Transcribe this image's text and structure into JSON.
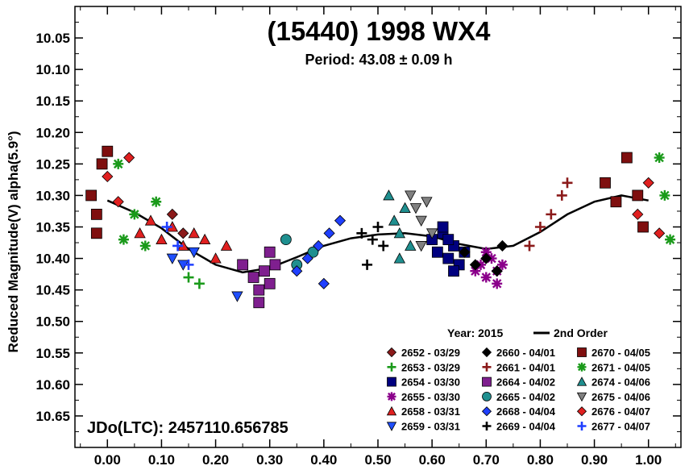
{
  "chart_data": {
    "type": "scatter",
    "title": "(15440) 1998 WX4",
    "subtitle": "Period: 43.08 ± 0.09 h",
    "ylabel": "Reduced Magnitude(V) alpha(5.9°)",
    "xlabel": "",
    "xlim": [
      -0.06,
      1.06
    ],
    "ylim": [
      10.0,
      10.7
    ],
    "y_inverted": true,
    "x_ticks": [
      "0.00",
      "0.10",
      "0.20",
      "0.30",
      "0.40",
      "0.50",
      "0.60",
      "0.70",
      "0.80",
      "0.90",
      "1.00"
    ],
    "y_ticks": [
      "10.05",
      "10.10",
      "10.15",
      "10.20",
      "10.25",
      "10.30",
      "10.35",
      "10.40",
      "10.45",
      "10.50",
      "10.55",
      "10.60",
      "10.65"
    ],
    "legend_year": "Year: 2015",
    "fit_label": "2nd Order",
    "jdo_label": "JDo(LTC): 2457110.656785",
    "fit_curve": {
      "x": [
        0.0,
        0.05,
        0.1,
        0.15,
        0.2,
        0.25,
        0.3,
        0.35,
        0.4,
        0.45,
        0.5,
        0.55,
        0.6,
        0.65,
        0.7,
        0.75,
        0.8,
        0.85,
        0.9,
        0.95,
        1.0
      ],
      "y": [
        10.308,
        10.327,
        10.352,
        10.385,
        10.41,
        10.422,
        10.415,
        10.398,
        10.38,
        10.368,
        10.362,
        10.36,
        10.365,
        10.377,
        10.385,
        10.38,
        10.358,
        10.33,
        10.31,
        10.3,
        10.308
      ]
    },
    "series": [
      {
        "name": "2652 - 03/29",
        "marker": "diamond",
        "color": "#8b1a1a",
        "x": [
          0.12,
          0.14
        ],
        "y": [
          10.33,
          10.36
        ]
      },
      {
        "name": "2653 - 03/29",
        "marker": "plus",
        "color": "#1a9a1a",
        "x": [
          0.15,
          0.17
        ],
        "y": [
          10.43,
          10.44
        ]
      },
      {
        "name": "2654 - 03/30",
        "marker": "square",
        "color": "#00007f",
        "x": [
          0.6,
          0.61,
          0.62,
          0.63,
          0.64,
          0.65,
          0.62,
          0.64,
          0.66,
          0.63
        ],
        "y": [
          10.37,
          10.39,
          10.36,
          10.4,
          10.38,
          10.41,
          10.35,
          10.42,
          10.39,
          10.37
        ]
      },
      {
        "name": "2655 - 03/30",
        "marker": "star",
        "color": "#8b008b",
        "x": [
          0.68,
          0.69,
          0.7,
          0.71,
          0.72,
          0.73,
          0.7,
          0.72
        ],
        "y": [
          10.42,
          10.41,
          10.43,
          10.4,
          10.42,
          10.41,
          10.39,
          10.44
        ]
      },
      {
        "name": "2658 - 03/31",
        "marker": "triangle-up",
        "color": "#e02020",
        "x": [
          0.06,
          0.08,
          0.1,
          0.12,
          0.14,
          0.16,
          0.18,
          0.2,
          0.22
        ],
        "y": [
          10.36,
          10.34,
          10.37,
          10.35,
          10.38,
          10.36,
          10.37,
          10.4,
          10.38
        ]
      },
      {
        "name": "2659 - 03/31",
        "marker": "triangle-down",
        "color": "#1f4fff",
        "x": [
          0.12,
          0.14,
          0.16,
          0.24
        ],
        "y": [
          10.4,
          10.41,
          10.39,
          10.46
        ]
      },
      {
        "name": "2660 - 04/01",
        "marker": "diamond",
        "color": "#000000",
        "x": [
          0.66,
          0.68,
          0.7,
          0.72,
          0.73
        ],
        "y": [
          10.39,
          10.41,
          10.4,
          10.42,
          10.38
        ]
      },
      {
        "name": "2661 - 04/01",
        "marker": "plus",
        "color": "#8b1a1a",
        "x": [
          0.78,
          0.8,
          0.82,
          0.84,
          0.85
        ],
        "y": [
          10.38,
          10.35,
          10.33,
          10.3,
          10.28
        ]
      },
      {
        "name": "2664 - 04/02",
        "marker": "square",
        "color": "#7f1f8f",
        "x": [
          0.25,
          0.27,
          0.28,
          0.29,
          0.3,
          0.31,
          0.28,
          0.3
        ],
        "y": [
          10.41,
          10.43,
          10.45,
          10.42,
          10.44,
          10.41,
          10.47,
          10.39
        ]
      },
      {
        "name": "2665 - 04/02",
        "marker": "circle",
        "color": "#1f8f8f",
        "x": [
          0.33,
          0.35,
          0.38
        ],
        "y": [
          10.37,
          10.41,
          10.39
        ]
      },
      {
        "name": "2668 - 04/04",
        "marker": "diamond",
        "color": "#1f3fff",
        "x": [
          0.35,
          0.37,
          0.39,
          0.41,
          0.43,
          0.4
        ],
        "y": [
          10.42,
          10.4,
          10.38,
          10.36,
          10.34,
          10.44
        ]
      },
      {
        "name": "2669 - 04/04",
        "marker": "plus",
        "color": "#000000",
        "x": [
          0.47,
          0.48,
          0.49,
          0.5,
          0.51
        ],
        "y": [
          10.36,
          10.41,
          10.37,
          10.35,
          10.38
        ]
      },
      {
        "name": "2670 - 04/05",
        "marker": "square",
        "color": "#7f0f0f",
        "x": [
          -0.03,
          -0.02,
          -0.01,
          0.0,
          -0.02,
          0.92,
          0.94,
          0.96,
          0.98,
          0.99
        ],
        "y": [
          10.3,
          10.33,
          10.25,
          10.23,
          10.36,
          10.28,
          10.31,
          10.24,
          10.3,
          10.35
        ]
      },
      {
        "name": "2671 - 04/05",
        "marker": "star",
        "color": "#1a9a1a",
        "x": [
          0.02,
          0.03,
          0.05,
          0.07,
          0.09,
          1.02,
          1.03,
          1.04
        ],
        "y": [
          10.25,
          10.37,
          10.33,
          10.38,
          10.31,
          10.24,
          10.3,
          10.37
        ]
      },
      {
        "name": "2674 - 04/06",
        "marker": "triangle-up",
        "color": "#1f8f8f",
        "x": [
          0.52,
          0.53,
          0.54,
          0.55,
          0.56,
          0.54
        ],
        "y": [
          10.3,
          10.34,
          10.36,
          10.32,
          10.38,
          10.4
        ]
      },
      {
        "name": "2675 - 04/06",
        "marker": "triangle-down",
        "color": "#808080",
        "x": [
          0.56,
          0.57,
          0.58,
          0.59,
          0.6,
          0.58
        ],
        "y": [
          10.3,
          10.32,
          10.34,
          10.31,
          10.36,
          10.38
        ]
      },
      {
        "name": "2676 - 04/07",
        "marker": "diamond",
        "color": "#e02020",
        "x": [
          0.0,
          0.02,
          0.04,
          0.98,
          1.0,
          1.02
        ],
        "y": [
          10.27,
          10.31,
          10.24,
          10.33,
          10.28,
          10.36
        ]
      },
      {
        "name": "2677 - 04/07",
        "marker": "plus",
        "color": "#1f3fff",
        "x": [
          0.11,
          0.13,
          0.15
        ],
        "y": [
          10.35,
          10.38,
          10.41
        ]
      }
    ]
  }
}
